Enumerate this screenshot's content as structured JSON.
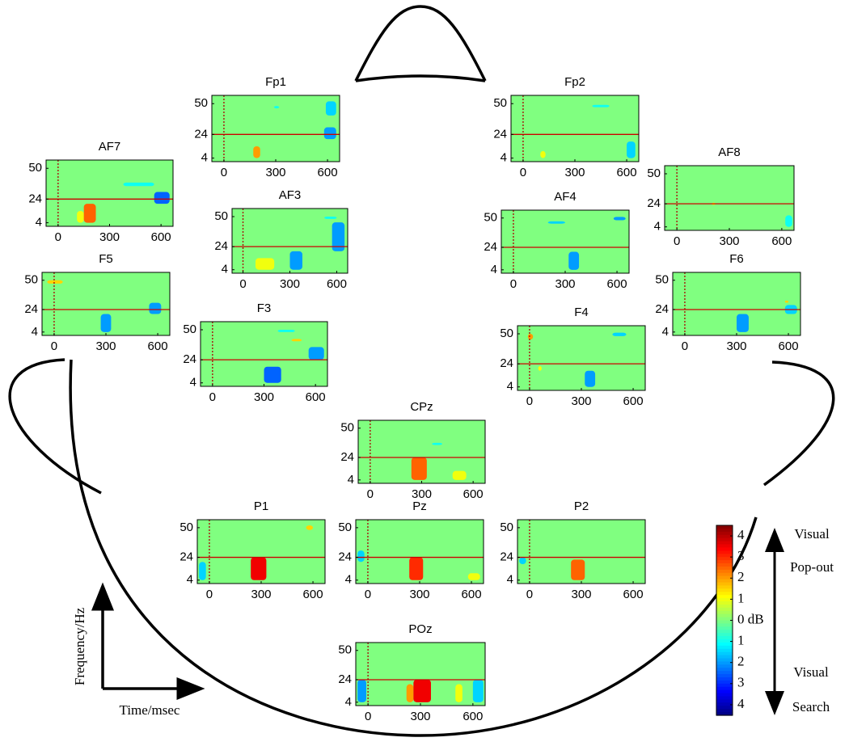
{
  "figure": {
    "x_label": "Time/msec",
    "y_label": "Frequency/Hz"
  },
  "chart_data": [
    {
      "type": "heatmap",
      "title": "Fp1",
      "xlim": [
        -70,
        670
      ],
      "ylim": [
        1,
        57
      ],
      "xticks": [
        0,
        300,
        600
      ],
      "yticks": [
        4,
        24,
        50
      ],
      "vline": 0,
      "hline": 24,
      "patches": [
        [
          170,
          210,
          4,
          14,
          2
        ],
        [
          580,
          650,
          20,
          30,
          -2
        ],
        [
          590,
          650,
          40,
          52,
          -1.5
        ],
        [
          290,
          320,
          46,
          48,
          -1
        ]
      ]
    },
    {
      "type": "heatmap",
      "title": "Fp2",
      "xlim": [
        -70,
        670
      ],
      "ylim": [
        1,
        57
      ],
      "xticks": [
        0,
        300,
        600
      ],
      "yticks": [
        4,
        24,
        50
      ],
      "vline": 0,
      "hline": 24,
      "patches": [
        [
          100,
          130,
          4,
          10,
          1
        ],
        [
          600,
          650,
          4,
          18,
          -1.5
        ],
        [
          400,
          500,
          47,
          49,
          -1
        ]
      ]
    },
    {
      "type": "heatmap",
      "title": "AF7",
      "xlim": [
        -70,
        670
      ],
      "ylim": [
        1,
        57
      ],
      "xticks": [
        0,
        300,
        600
      ],
      "yticks": [
        4,
        24,
        50
      ],
      "vline": 0,
      "hline": 24,
      "patches": [
        [
          110,
          150,
          4,
          14,
          1
        ],
        [
          150,
          220,
          4,
          20,
          2.5
        ],
        [
          560,
          650,
          20,
          30,
          -2.5
        ],
        [
          380,
          560,
          35,
          38,
          -1
        ]
      ]
    },
    {
      "type": "heatmap",
      "title": "AF8",
      "xlim": [
        -70,
        670
      ],
      "ylim": [
        1,
        57
      ],
      "xticks": [
        0,
        300,
        600
      ],
      "yticks": [
        4,
        24,
        50
      ],
      "vline": 0,
      "hline": 24,
      "patches": [
        [
          620,
          660,
          4,
          14,
          -1
        ],
        [
          200,
          220,
          23,
          25,
          1
        ]
      ]
    },
    {
      "type": "heatmap",
      "title": "AF3",
      "xlim": [
        -70,
        670
      ],
      "ylim": [
        1,
        57
      ],
      "xticks": [
        0,
        300,
        600
      ],
      "yticks": [
        4,
        24,
        50
      ],
      "vline": 0,
      "hline": 24,
      "patches": [
        [
          80,
          200,
          4,
          14,
          1
        ],
        [
          300,
          380,
          4,
          20,
          -2
        ],
        [
          570,
          650,
          20,
          45,
          -2
        ],
        [
          520,
          600,
          48,
          50,
          -1
        ]
      ]
    },
    {
      "type": "heatmap",
      "title": "AF4",
      "xlim": [
        -70,
        670
      ],
      "ylim": [
        1,
        57
      ],
      "xticks": [
        0,
        300,
        600
      ],
      "yticks": [
        4,
        24,
        50
      ],
      "vline": 0,
      "hline": 24,
      "patches": [
        [
          320,
          380,
          4,
          20,
          -2
        ],
        [
          200,
          300,
          45,
          47,
          -1.5
        ],
        [
          580,
          650,
          48,
          51,
          -2
        ]
      ]
    },
    {
      "type": "heatmap",
      "title": "F5",
      "xlim": [
        -70,
        670
      ],
      "ylim": [
        1,
        57
      ],
      "xticks": [
        0,
        300,
        600
      ],
      "yticks": [
        4,
        24,
        50
      ],
      "vline": 0,
      "hline": 24,
      "patches": [
        [
          270,
          330,
          4,
          20,
          -2
        ],
        [
          550,
          620,
          20,
          30,
          -2
        ],
        [
          -40,
          50,
          47,
          50,
          1.5
        ]
      ]
    },
    {
      "type": "heatmap",
      "title": "F6",
      "xlim": [
        -70,
        670
      ],
      "ylim": [
        1,
        57
      ],
      "xticks": [
        0,
        300,
        600
      ],
      "yticks": [
        4,
        24,
        50
      ],
      "vline": 0,
      "hline": 24,
      "patches": [
        [
          300,
          370,
          4,
          20,
          -2
        ],
        [
          580,
          650,
          20,
          28,
          -1.5
        ],
        [
          580,
          600,
          30,
          32,
          1.5
        ]
      ]
    },
    {
      "type": "heatmap",
      "title": "F3",
      "xlim": [
        -70,
        670
      ],
      "ylim": [
        1,
        57
      ],
      "xticks": [
        0,
        300,
        600
      ],
      "yticks": [
        4,
        24,
        50
      ],
      "vline": 0,
      "hline": 24,
      "patches": [
        [
          300,
          400,
          4,
          18,
          -2.5
        ],
        [
          560,
          650,
          24,
          35,
          -2
        ],
        [
          460,
          520,
          40,
          42,
          1.5
        ],
        [
          380,
          480,
          48,
          50,
          -1
        ]
      ]
    },
    {
      "type": "heatmap",
      "title": "F4",
      "xlim": [
        -70,
        670
      ],
      "ylim": [
        1,
        57
      ],
      "xticks": [
        0,
        300,
        600
      ],
      "yticks": [
        4,
        24,
        50
      ],
      "vline": 0,
      "hline": 24,
      "patches": [
        [
          320,
          380,
          4,
          18,
          -2
        ],
        [
          -10,
          20,
          45,
          50,
          2
        ],
        [
          50,
          70,
          18,
          22,
          1
        ],
        [
          480,
          560,
          48,
          51,
          -1.5
        ]
      ]
    },
    {
      "type": "heatmap",
      "title": "CPz",
      "xlim": [
        -70,
        670
      ],
      "ylim": [
        1,
        57
      ],
      "xticks": [
        0,
        300,
        600
      ],
      "yticks": [
        4,
        24,
        50
      ],
      "vline": 0,
      "hline": 24,
      "patches": [
        [
          240,
          330,
          4,
          24,
          2.5
        ],
        [
          480,
          560,
          4,
          12,
          1
        ],
        [
          360,
          420,
          35,
          37,
          -1
        ]
      ]
    },
    {
      "type": "heatmap",
      "title": "P1",
      "xlim": [
        -70,
        670
      ],
      "ylim": [
        1,
        57
      ],
      "xticks": [
        0,
        300,
        600
      ],
      "yticks": [
        4,
        24,
        50
      ],
      "vline": 0,
      "hline": 24,
      "patches": [
        [
          240,
          330,
          4,
          24,
          3.5
        ],
        [
          -60,
          -20,
          4,
          20,
          -1.5
        ],
        [
          560,
          600,
          48,
          52,
          1.5
        ]
      ]
    },
    {
      "type": "heatmap",
      "title": "Pz",
      "xlim": [
        -70,
        670
      ],
      "ylim": [
        1,
        57
      ],
      "xticks": [
        0,
        300,
        600
      ],
      "yticks": [
        4,
        24,
        50
      ],
      "vline": 0,
      "hline": 24,
      "patches": [
        [
          240,
          320,
          4,
          24,
          3
        ],
        [
          -60,
          -20,
          20,
          30,
          -1.5
        ],
        [
          580,
          650,
          4,
          10,
          1
        ]
      ]
    },
    {
      "type": "heatmap",
      "title": "P2",
      "xlim": [
        -70,
        670
      ],
      "ylim": [
        1,
        57
      ],
      "xticks": [
        0,
        300,
        600
      ],
      "yticks": [
        4,
        24,
        50
      ],
      "vline": 0,
      "hline": 24,
      "patches": [
        [
          240,
          320,
          4,
          22,
          2.5
        ],
        [
          -60,
          -20,
          18,
          24,
          -1.5
        ]
      ]
    },
    {
      "type": "heatmap",
      "title": "POz",
      "xlim": [
        -70,
        670
      ],
      "ylim": [
        1,
        57
      ],
      "xticks": [
        0,
        300,
        600
      ],
      "yticks": [
        4,
        24,
        50
      ],
      "vline": 0,
      "hline": 24,
      "patches": [
        [
          220,
          260,
          4,
          20,
          2
        ],
        [
          260,
          360,
          4,
          24,
          3.5
        ],
        [
          500,
          540,
          4,
          20,
          1
        ],
        [
          -60,
          -10,
          4,
          24,
          -2
        ],
        [
          600,
          660,
          4,
          24,
          -1.5
        ]
      ]
    },
    {
      "type": "colorbar",
      "clim": [
        -4.5,
        4.5
      ],
      "ticks": [
        4,
        3,
        2,
        1,
        {
          "value": 0,
          "label": "0 dB"
        },
        {
          "value": -1,
          "label": "1"
        },
        {
          "value": -2,
          "label": "2"
        },
        {
          "value": -3,
          "label": "3"
        },
        {
          "value": -4,
          "label": "4"
        }
      ],
      "annotations": [
        "Visual",
        "Pop-out",
        "Visual",
        "Search"
      ]
    }
  ]
}
